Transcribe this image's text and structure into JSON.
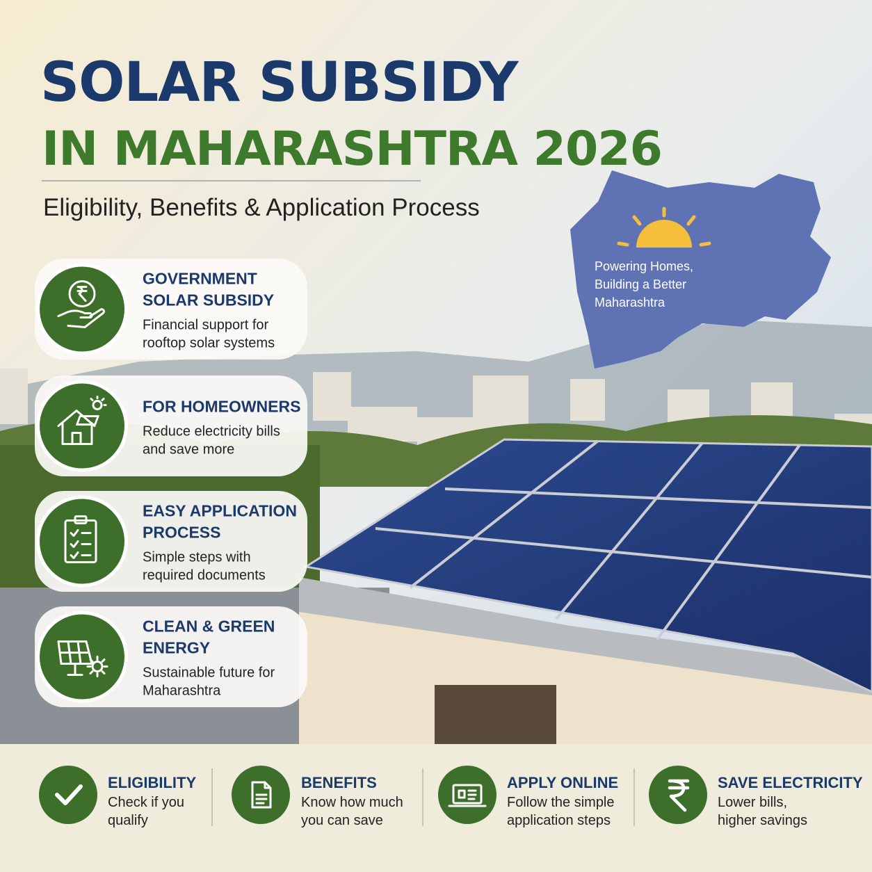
{
  "header": {
    "title_line1": "SOLAR SUBSIDY",
    "title_line2": "IN MAHARASHTRA 2026",
    "subtitle": "Eligibility, Benefits & Application Process"
  },
  "map": {
    "caption": [
      "Powering Homes,",
      "Building a Better",
      "Maharashtra"
    ]
  },
  "cards": [
    {
      "title": [
        "GOVERNMENT",
        "SOLAR SUBSIDY"
      ],
      "description": [
        "Financial support for",
        "rooftop solar systems"
      ]
    },
    {
      "title": [
        "FOR HOMEOWNERS"
      ],
      "description": [
        "Reduce electricity bills",
        "and save more"
      ]
    },
    {
      "title": [
        "EASY APPLICATION",
        "PROCESS"
      ],
      "description": [
        "Simple steps with",
        "required documents"
      ]
    },
    {
      "title": [
        "CLEAN & GREEN",
        "ENERGY"
      ],
      "description": [
        "Sustainable future for",
        "Maharashtra"
      ]
    }
  ],
  "footer": [
    {
      "title": "ELIGIBILITY",
      "description": [
        "Check if you",
        "qualify"
      ]
    },
    {
      "title": "BENEFITS",
      "description": [
        "Know how much",
        "you can save"
      ]
    },
    {
      "title": "APPLY ONLINE",
      "description": [
        "Follow the simple",
        "application steps"
      ]
    },
    {
      "title": "SAVE ELECTRICITY",
      "description": [
        "Lower bills,",
        "higher savings"
      ]
    }
  ]
}
